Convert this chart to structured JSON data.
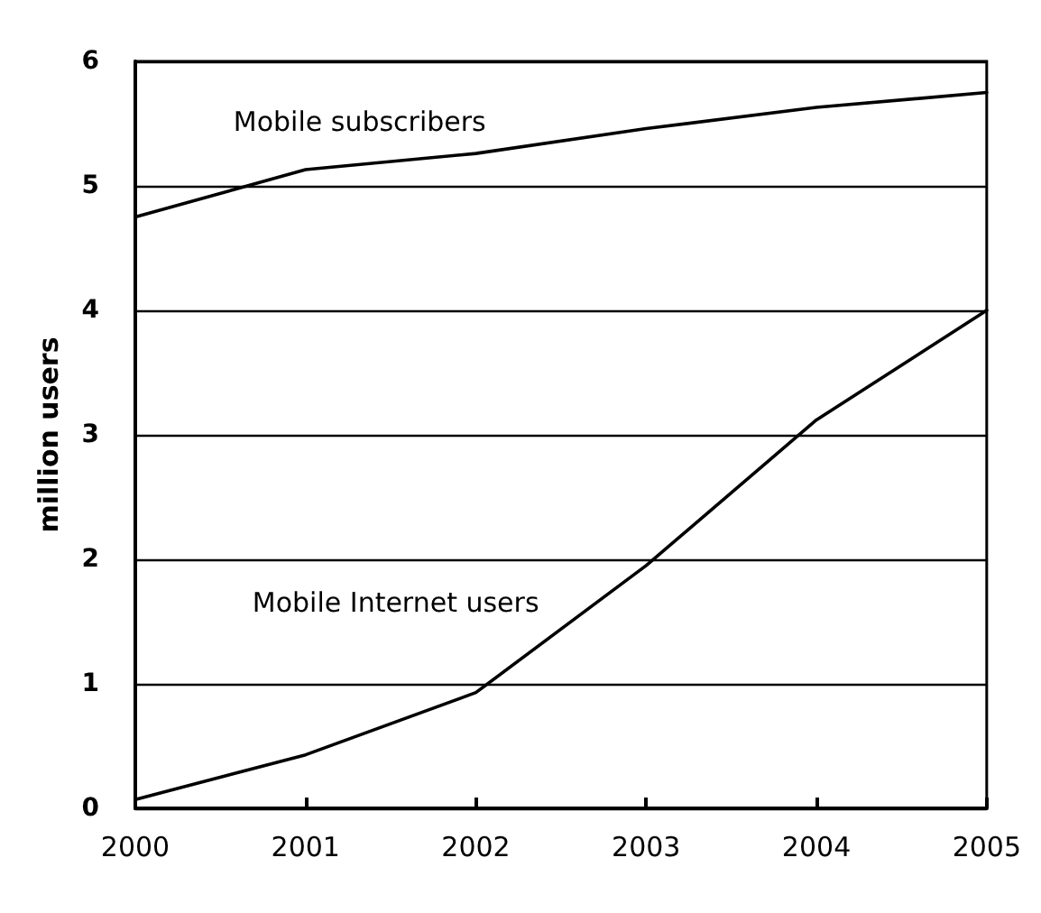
{
  "chart_data": {
    "type": "line",
    "ylabel": "million users",
    "x": [
      2000,
      2001,
      2002,
      2003,
      2004,
      2005
    ],
    "series": [
      {
        "name": "Mobile subscribers",
        "color": "#000000",
        "values": [
          4.75,
          5.13,
          5.26,
          5.46,
          5.63,
          5.75
        ]
      },
      {
        "name": "Mobile Internet users",
        "color": "#000000",
        "values": [
          0.07,
          0.43,
          0.93,
          1.95,
          3.12,
          4.0
        ]
      }
    ],
    "xlim": [
      2000,
      2005
    ],
    "xticks": [
      2000,
      2001,
      2002,
      2003,
      2004,
      2005
    ],
    "ylim": [
      0,
      6
    ],
    "yticks": [
      0,
      1,
      2,
      3,
      4,
      5,
      6
    ],
    "grid": "y",
    "legend": false,
    "marker": "none",
    "line_style": "solid"
  }
}
